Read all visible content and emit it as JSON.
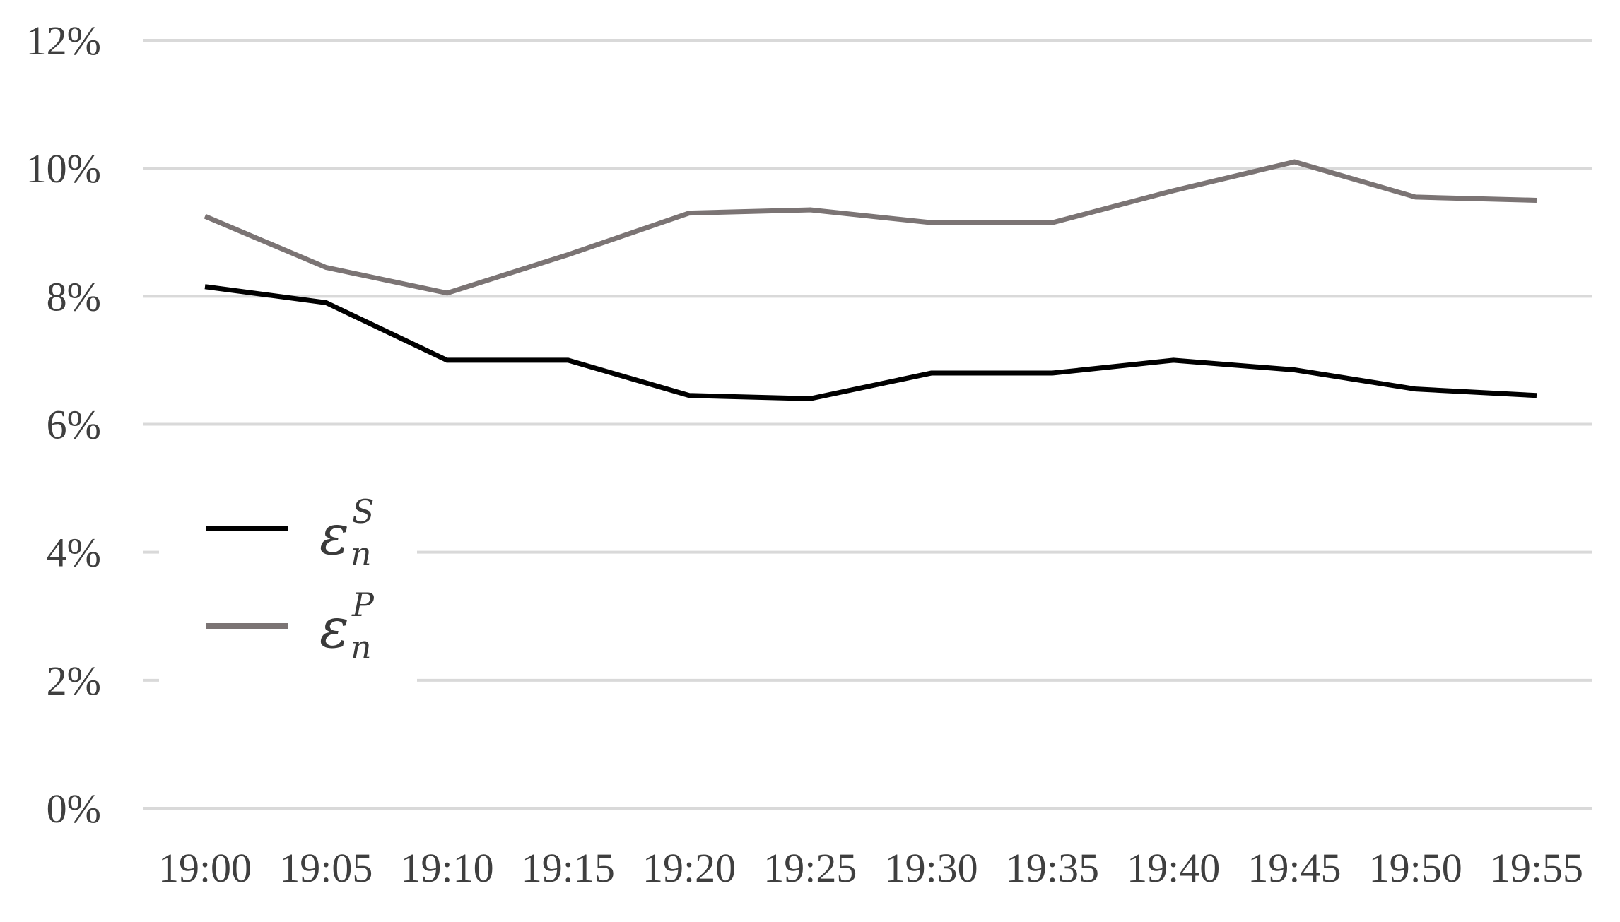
{
  "chart_data": {
    "type": "line",
    "title": "",
    "xlabel": "",
    "ylabel": "",
    "categories": [
      "19:00",
      "19:05",
      "19:10",
      "19:15",
      "19:20",
      "19:25",
      "19:30",
      "19:35",
      "19:40",
      "19:45",
      "19:50",
      "19:55"
    ],
    "series": [
      {
        "name": "epsilon-n-S",
        "legend": {
          "symbol": "ε",
          "sub": "n",
          "sup": "S"
        },
        "color": "#000000",
        "values": [
          8.15,
          7.9,
          7.0,
          7.0,
          6.45,
          6.4,
          6.8,
          6.8,
          7.0,
          6.85,
          6.55,
          6.45
        ]
      },
      {
        "name": "epsilon-n-P",
        "legend": {
          "symbol": "ε",
          "sub": "n",
          "sup": "P"
        },
        "color": "#7b7474",
        "values": [
          9.25,
          8.45,
          8.05,
          8.65,
          9.3,
          9.35,
          9.15,
          9.15,
          9.65,
          10.1,
          9.55,
          9.5
        ]
      }
    ],
    "y_tick_values": [
      0,
      2,
      4,
      6,
      8,
      10,
      12
    ],
    "y_tick_labels": [
      "0%",
      "2%",
      "4%",
      "6%",
      "8%",
      "10%",
      "12%"
    ],
    "ylim": [
      0,
      12
    ],
    "grid": "horizontal",
    "legend_position": "inside-left",
    "colors": {
      "gridline": "#d9d9d9",
      "axis_text": "#3f3f3f",
      "background": "#ffffff",
      "legend_text": "#3a3a3a"
    }
  }
}
